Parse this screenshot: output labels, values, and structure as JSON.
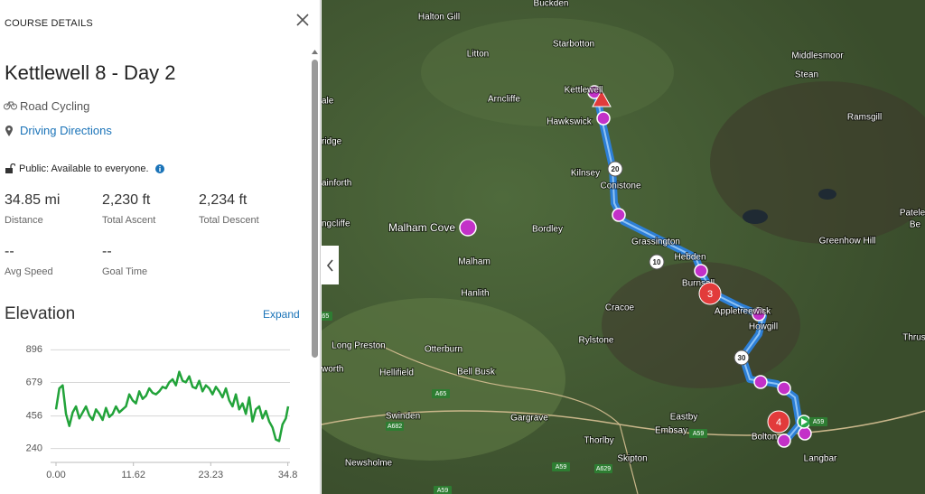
{
  "header": {
    "title": "COURSE DETAILS"
  },
  "course": {
    "name": "Kettlewell 8 - Day 2",
    "activity": "Road Cycling",
    "directions": "Driving Directions",
    "privacy": "Public: Available to everyone."
  },
  "stats": [
    {
      "value": "34.85 mi",
      "label": "Distance"
    },
    {
      "value": "2,230 ft",
      "label": "Total Ascent"
    },
    {
      "value": "2,234 ft",
      "label": "Total Descent"
    },
    {
      "value": "--",
      "label": "Avg Speed"
    },
    {
      "value": "--",
      "label": "Goal Time"
    }
  ],
  "elevation": {
    "title": "Elevation",
    "expand": "Expand"
  },
  "chart_data": {
    "type": "line",
    "color": "#22a33a",
    "grid": true,
    "x": [
      0,
      0.5,
      1,
      1.5,
      2,
      2.5,
      3,
      3.5,
      4,
      4.5,
      5,
      5.5,
      6,
      6.5,
      7,
      7.5,
      8,
      8.5,
      9,
      9.5,
      10,
      10.5,
      11,
      11.5,
      12,
      12.5,
      13,
      13.5,
      14,
      14.5,
      15,
      15.5,
      16,
      16.5,
      17,
      17.5,
      18,
      18.5,
      19,
      19.5,
      20,
      20.5,
      21,
      21.5,
      22,
      22.5,
      23,
      23.5,
      24,
      24.5,
      25,
      25.5,
      26,
      26.5,
      27,
      27.5,
      28,
      28.5,
      29,
      29.5,
      30,
      30.5,
      31,
      31.5,
      32,
      32.5,
      33,
      33.5,
      34,
      34.5,
      34.85
    ],
    "values": [
      500,
      640,
      660,
      470,
      390,
      480,
      520,
      440,
      480,
      520,
      460,
      430,
      500,
      470,
      430,
      510,
      450,
      470,
      520,
      480,
      500,
      520,
      600,
      560,
      540,
      620,
      570,
      590,
      640,
      610,
      600,
      620,
      650,
      640,
      680,
      700,
      660,
      750,
      690,
      680,
      720,
      650,
      640,
      690,
      620,
      660,
      640,
      600,
      650,
      620,
      580,
      640,
      560,
      520,
      600,
      500,
      540,
      470,
      580,
      420,
      500,
      520,
      440,
      490,
      420,
      380,
      300,
      290,
      400,
      440,
      520
    ],
    "xlim": [
      0,
      34.85
    ],
    "ylim": [
      160,
      940
    ],
    "xticks": [
      {
        "value": 0,
        "label": "0.00"
      },
      11.62,
      23.23,
      34.8
    ],
    "yticks": [
      240,
      456,
      679,
      896
    ]
  },
  "map": {
    "places": [
      "Buckden",
      "Halton Gill",
      "Starbotton",
      "Litton",
      "Middlesmoor",
      "Stean",
      "Arncliffe",
      "Kettlewell",
      "Hawkswick",
      "Ramsgill",
      "Kilnsey",
      "Conistone",
      "Malham Cove",
      "Bordley",
      "Grassington",
      "Hebden",
      "Greenhow Hill",
      "Patele",
      "Be",
      "Malham",
      "Hanlith",
      "Burnsall",
      "Appletreewick",
      "Howgill",
      "Cracoe",
      "Rylstone",
      "Long Preston",
      "Otterburn",
      "Hellifield",
      "Bell Busk",
      "Swinden",
      "Gargrave",
      "Eastby",
      "Embsay",
      "Thorlby",
      "Skipton",
      "Bolton",
      "Langbar",
      "Newsholme",
      "Thrus",
      "ale",
      "ridge",
      "ainforth",
      "ngcliffe",
      "worth"
    ],
    "roads": [
      "A65",
      "A682",
      "A59",
      "A629",
      "A59",
      "A59",
      "A59",
      "A65"
    ],
    "route_markers": [
      "20",
      "10",
      "30",
      "3",
      "4"
    ]
  }
}
